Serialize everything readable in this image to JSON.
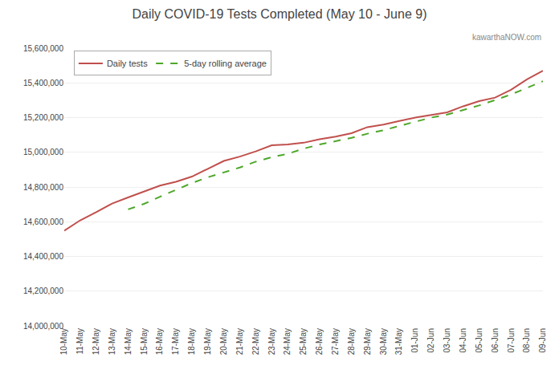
{
  "chart_data": {
    "type": "line",
    "title": "Daily COVID-19 Tests Completed (May 10 - June 9)",
    "categories": [
      "10-May",
      "11-May",
      "12-May",
      "13-May",
      "14-May",
      "15-May",
      "16-May",
      "17-May",
      "18-May",
      "19-May",
      "20-May",
      "21-May",
      "22-May",
      "23-May",
      "24-May",
      "25-May",
      "26-May",
      "27-May",
      "28-May",
      "29-May",
      "30-May",
      "31-May",
      "01-Jun",
      "02-Jun",
      "03-Jun",
      "04-Jun",
      "05-Jun",
      "06-Jun",
      "07-Jun",
      "08-Jun",
      "09-Jun"
    ],
    "series": [
      {
        "name": "Daily tests",
        "color": "#C0504D",
        "line_style": "solid",
        "values": [
          14548000,
          14608000,
          14655000,
          14705000,
          14740000,
          14775000,
          14808000,
          14830000,
          14860000,
          14905000,
          14950000,
          14975000,
          15005000,
          15040000,
          15045000,
          15055000,
          15075000,
          15090000,
          15110000,
          15145000,
          15160000,
          15180000,
          15200000,
          15215000,
          15230000,
          15265000,
          15295000,
          15315000,
          15360000,
          15420000,
          15470000
        ]
      },
      {
        "name": "5-day rolling average",
        "color": "#4EA72A",
        "line_style": "dashed",
        "values": [
          null,
          null,
          null,
          null,
          14671000,
          14703000,
          14744000,
          14784000,
          14823000,
          14856000,
          14885000,
          14912000,
          14946000,
          14972000,
          14991000,
          15021000,
          15045000,
          15063000,
          15083000,
          15107000,
          15127000,
          15152000,
          15176000,
          15200000,
          15217000,
          15242000,
          15270000,
          15301000,
          15333000,
          15371000,
          15410000
        ]
      }
    ],
    "ylim": [
      14000000,
      15600000
    ],
    "yticks": [
      {
        "value": 14000000,
        "label": "14,000,000"
      },
      {
        "value": 14200000,
        "label": "14,200,000"
      },
      {
        "value": 14400000,
        "label": "14,400,000"
      },
      {
        "value": 14600000,
        "label": "14,600,000"
      },
      {
        "value": 14800000,
        "label": "14,800,000"
      },
      {
        "value": 15000000,
        "label": "15,000,000"
      },
      {
        "value": 15200000,
        "label": "15,200,000"
      },
      {
        "value": 15400000,
        "label": "15,400,000"
      },
      {
        "value": 15600000,
        "label": "15,600,000"
      }
    ],
    "grid": true,
    "legend": "upper left",
    "annotations": [
      "kawarthaNOW.com"
    ]
  }
}
